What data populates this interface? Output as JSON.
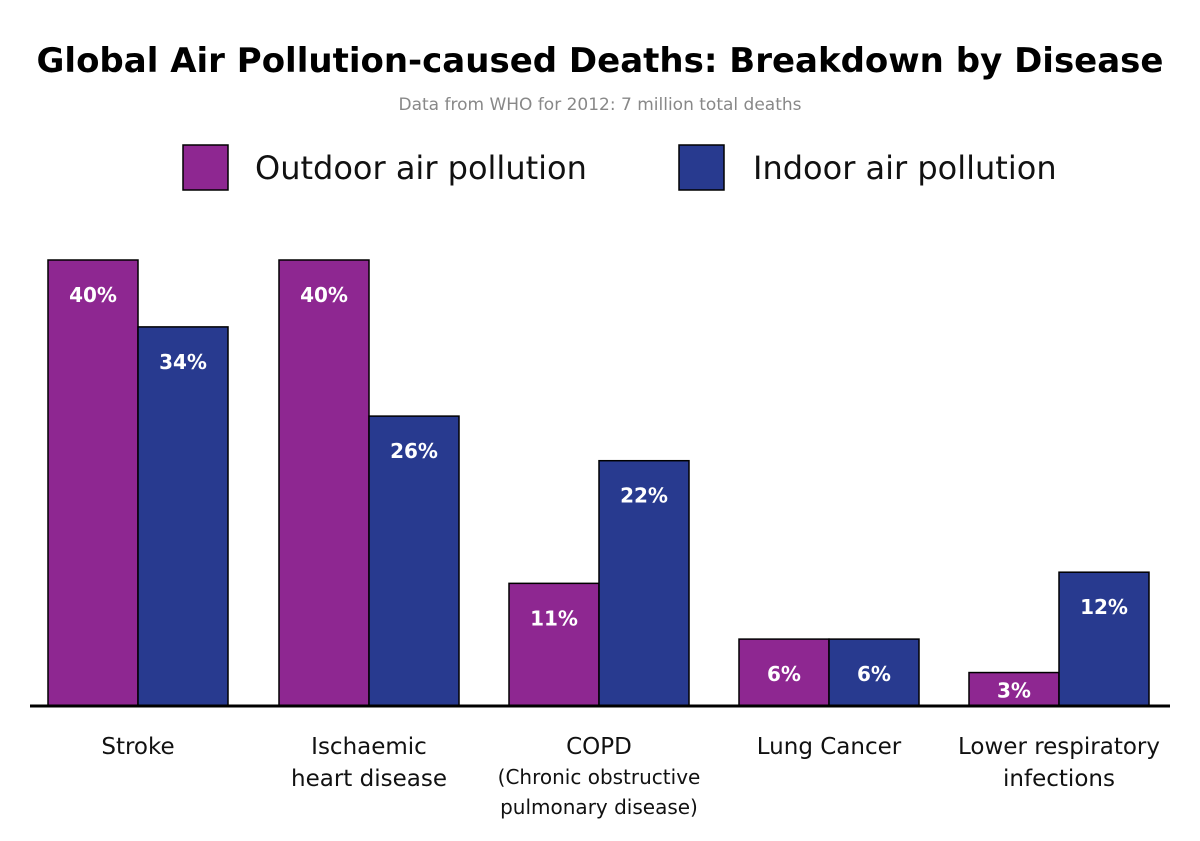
{
  "chart_data": {
    "type": "bar",
    "title": "Global Air Pollution-caused Deaths: Breakdown by Disease",
    "subtitle": "Data from WHO for 2012: 7 million total deaths",
    "categories": [
      [
        "Stroke"
      ],
      [
        "Ischaemic",
        "heart disease"
      ],
      [
        "COPD",
        "(Chronic obstructive",
        "pulmonary disease)"
      ],
      [
        "Lung Cancer"
      ],
      [
        "Lower respiratory",
        "infections"
      ]
    ],
    "series": [
      {
        "name": "Outdoor air pollution",
        "color": "#8e2791",
        "values": [
          40,
          40,
          11,
          6,
          3
        ],
        "labels": [
          "40%",
          "40%",
          "11%",
          "6%",
          "3%"
        ]
      },
      {
        "name": "Indoor air pollution",
        "color": "#283a8f",
        "values": [
          34,
          26,
          22,
          6,
          12
        ],
        "labels": [
          "34%",
          "26%",
          "22%",
          "6%",
          "12%"
        ]
      }
    ],
    "ylim": [
      0,
      40
    ],
    "grid": false,
    "legend_placement": "top-center",
    "xlabel": "",
    "ylabel": ""
  }
}
